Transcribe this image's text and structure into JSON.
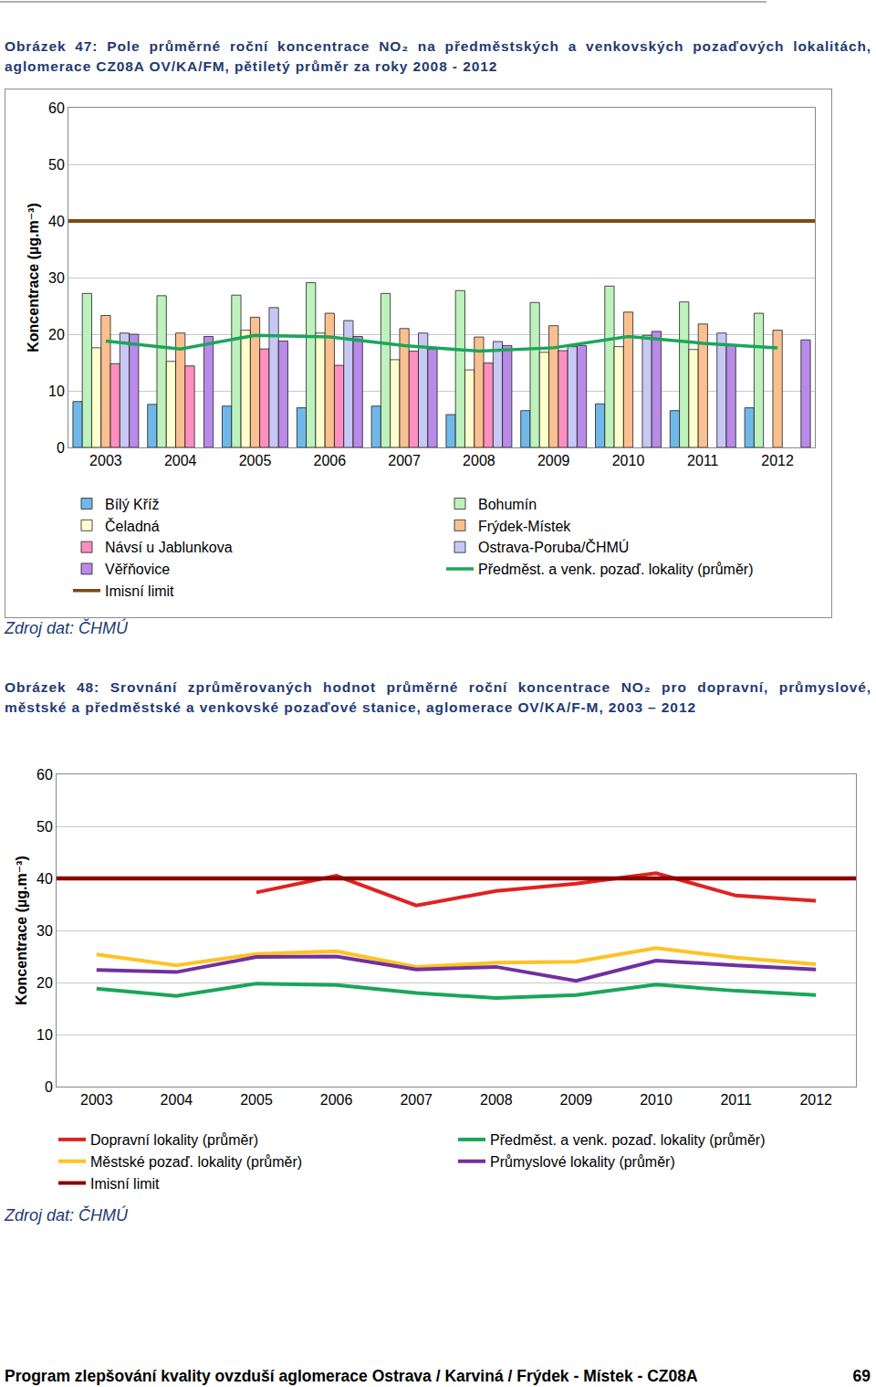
{
  "document": {
    "captions": [
      "Obrázek 47:   Pole průměrné roční koncentrace NO₂ na předměstských a venkovských pozaďových lokalitách, aglomerace CZ08A OV/KA/FM, pětiletý průměr za roky 2008 - 2012",
      "Obrázek 48:   Srovnání zprůměrovaných hodnot průměrné roční koncentrace NO₂ pro dopravní, průmyslové, městské a předměstské a venkovské pozaďové stanice, aglomerace OV/KA/F-M, 2003 – 2012"
    ],
    "sources": [
      "Zdroj dat: ČHMÚ",
      "Zdroj dat: ČHMÚ"
    ],
    "footer": {
      "text": "Program zlepšování kvality ovzduší aglomerace Ostrava / Karviná / Frýdek - Místek - CZ08A",
      "page": 69
    }
  },
  "chart_data": [
    {
      "type": "bar",
      "y_label": "Koncentrace (µg.m⁻³)",
      "categories": [
        "2003",
        "2004",
        "2005",
        "2006",
        "2007",
        "2008",
        "2009",
        "2010",
        "2011",
        "2012"
      ],
      "series": [
        {
          "name": "Bílý Kříž",
          "color": "#70b8ea",
          "type": "bar",
          "values": [
            8.1,
            7.6,
            7.3,
            7.0,
            7.3,
            5.8,
            6.5,
            7.7,
            6.5,
            7.0
          ]
        },
        {
          "name": "Bohumín",
          "color": "#bdf2bd",
          "type": "bar",
          "values": [
            27.2,
            26.8,
            26.9,
            29.1,
            27.2,
            27.7,
            25.6,
            28.5,
            25.7,
            23.7
          ]
        },
        {
          "name": "Čeladná",
          "color": "#ffffcc",
          "type": "bar",
          "values": [
            17.6,
            15.2,
            20.7,
            20.2,
            15.5,
            13.7,
            16.8,
            17.8,
            17.3,
            null
          ]
        },
        {
          "name": "Frýdek-Místek",
          "color": "#fac090",
          "type": "bar",
          "values": [
            23.3,
            20.2,
            23.0,
            23.7,
            21.0,
            19.5,
            21.5,
            23.9,
            21.8,
            20.7
          ]
        },
        {
          "name": "Návsí u Jablunkova",
          "color": "#ff8fc0",
          "type": "bar",
          "values": [
            14.8,
            14.4,
            17.4,
            14.5,
            17.0,
            14.9,
            17.1,
            null,
            null,
            null
          ]
        },
        {
          "name": "Ostrava-Poruba/ČHMÚ",
          "color": "#c8c8f5",
          "type": "bar",
          "values": [
            20.2,
            null,
            24.7,
            22.4,
            20.2,
            18.7,
            17.8,
            19.8,
            20.2,
            null
          ]
        },
        {
          "name": "Věřňovice",
          "color": "#b98ae8",
          "type": "bar",
          "values": [
            20.0,
            19.6,
            18.8,
            19.6,
            17.4,
            18.0,
            18.0,
            20.5,
            18.0,
            19.0
          ]
        },
        {
          "name": "Předměst. a venk. pozaď. lokality (průměr)",
          "color": "#1aa65a",
          "type": "line",
          "values": [
            18.8,
            17.4,
            19.8,
            19.5,
            18.0,
            17.0,
            17.6,
            19.6,
            18.4,
            17.6
          ]
        }
      ],
      "limit": {
        "name": "Imisní limit",
        "color": "#7b4a12",
        "value": 40
      },
      "ylim": [
        0,
        60
      ],
      "yticks": [
        0,
        10,
        20,
        30,
        40,
        50,
        60
      ],
      "grid": true,
      "legend": "bottom"
    },
    {
      "type": "line",
      "y_label": "Koncentrace (µg.m⁻³)",
      "categories": [
        "2003",
        "2004",
        "2005",
        "2006",
        "2007",
        "2008",
        "2009",
        "2010",
        "2011",
        "2012"
      ],
      "series": [
        {
          "name": "Dopravní lokality (průměr)",
          "color": "#e02222",
          "values": [
            null,
            null,
            37.3,
            40.5,
            34.8,
            37.6,
            39.0,
            41.0,
            36.7,
            35.7
          ]
        },
        {
          "name": "Předměst. a venk. pozaď. lokality (průměr)",
          "color": "#1aa65a",
          "values": [
            18.8,
            17.4,
            19.8,
            19.5,
            18.0,
            17.0,
            17.6,
            19.6,
            18.4,
            17.6
          ]
        },
        {
          "name": "Městské pozaď. lokality (průměr)",
          "color": "#ffc222",
          "values": [
            25.4,
            23.3,
            25.5,
            26.0,
            23.0,
            23.8,
            24.0,
            26.6,
            24.8,
            23.5
          ]
        },
        {
          "name": "Průmyslové lokality (průměr)",
          "color": "#7030a0",
          "values": [
            22.4,
            22.0,
            24.9,
            25.0,
            22.5,
            23.0,
            20.3,
            24.2,
            23.3,
            22.5
          ]
        }
      ],
      "limit": {
        "name": "Imisní limit",
        "color": "#8b0000",
        "value": 40
      },
      "ylim": [
        0,
        60
      ],
      "yticks": [
        0,
        10,
        20,
        30,
        40,
        50,
        60
      ],
      "grid": true,
      "legend": "bottom"
    }
  ]
}
